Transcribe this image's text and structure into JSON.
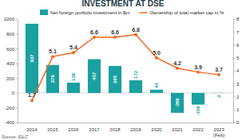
{
  "chart_data": {
    "type": "bar",
    "title": "INVESTMENT AT DSE",
    "source": "Source: IDLC",
    "categories": [
      "2014",
      "2015",
      "2016",
      "2017",
      "2018",
      "2019",
      "2020",
      "2021",
      "2022",
      "2023 (Feb)"
    ],
    "series": [
      {
        "name": "Net foreign portfolio investment in $m",
        "type": "bar",
        "color": "#1aa0a0",
        "values": [
          937,
          379,
          139,
          457,
          365,
          172,
          44,
          -269,
          -158,
          -2
        ],
        "data_labels": true
      },
      {
        "name": "Ownership of total market cap in %",
        "type": "line",
        "color": "#f26a21",
        "axis": "y2",
        "marker": "circle",
        "values": [
          1.7,
          5.1,
          5.4,
          6.6,
          6.6,
          6.8,
          5.0,
          4.2,
          3.9,
          3.7
        ],
        "data_labels": true
      }
    ],
    "ylim": [
      -400,
      1000
    ],
    "yticks": [
      -400,
      -200,
      0,
      200,
      400,
      600,
      800,
      1000
    ],
    "y2lim": [
      0,
      8
    ],
    "y2ticks": [
      0,
      1,
      2,
      3,
      4,
      5,
      6,
      7,
      8
    ],
    "grid": false,
    "legend": "top"
  }
}
